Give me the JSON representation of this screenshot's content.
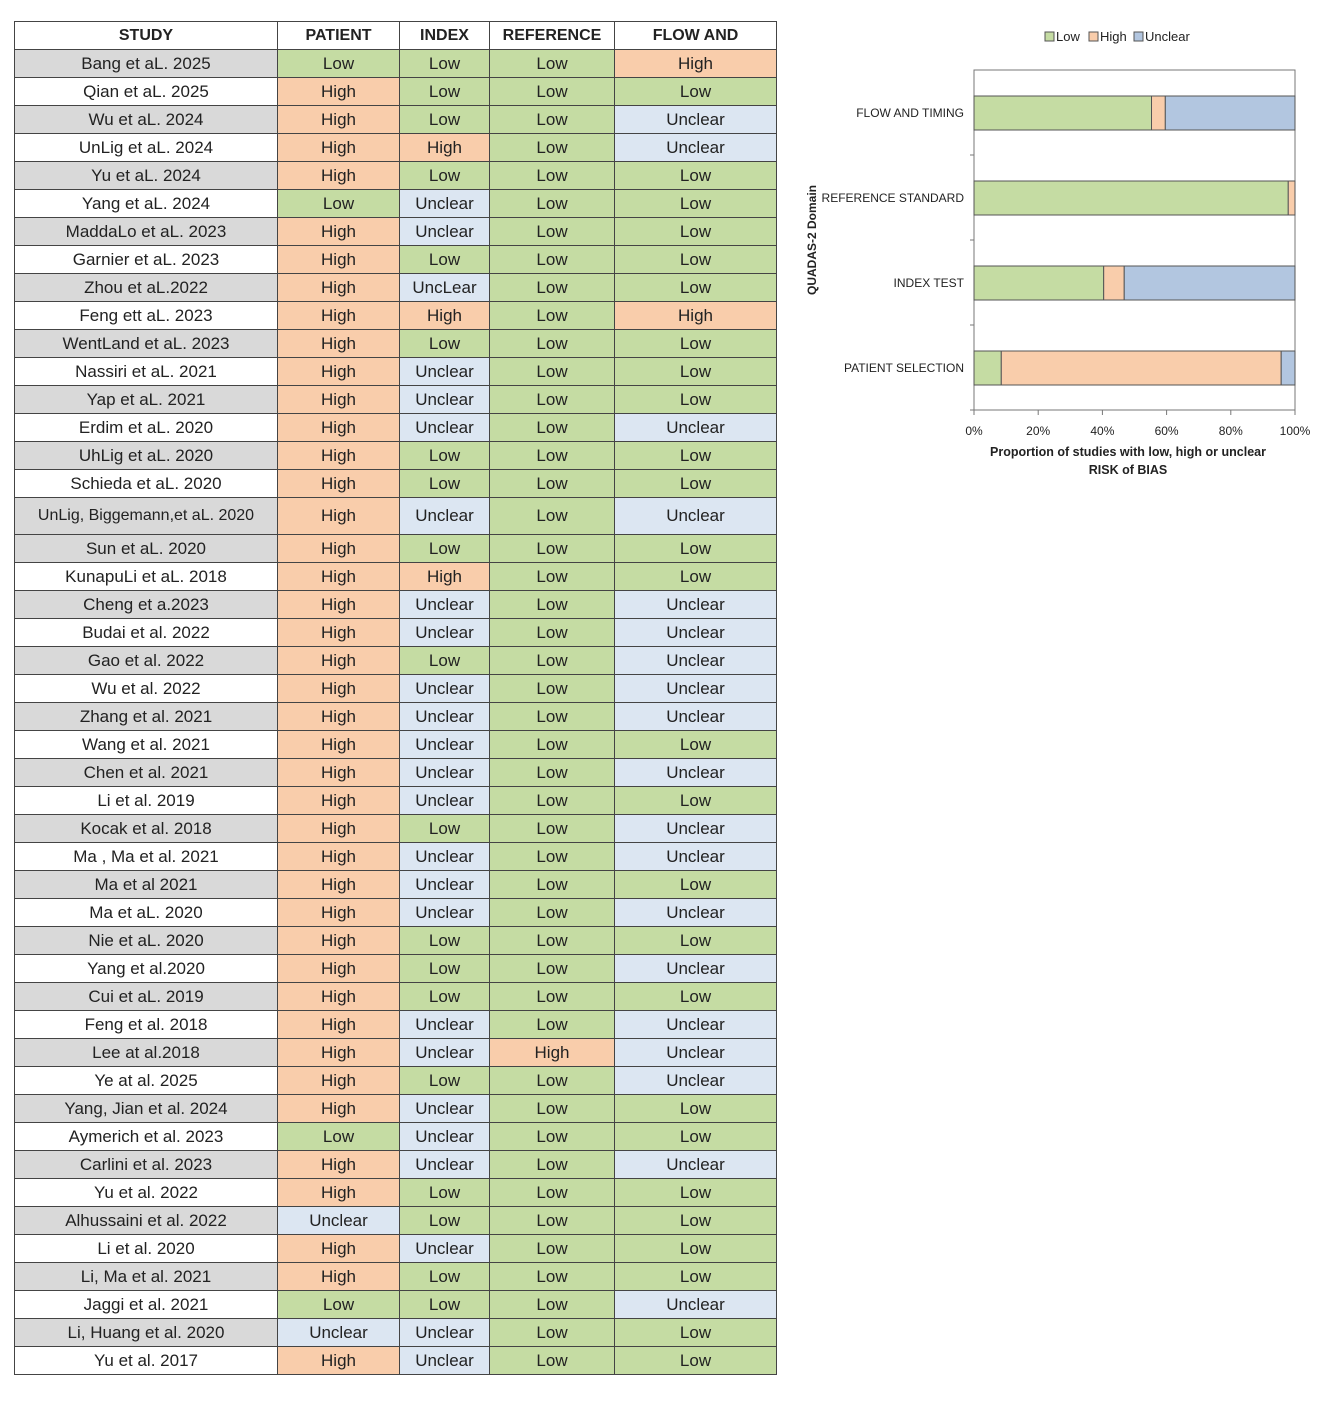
{
  "table": {
    "headers": [
      "STUDY",
      "PATIENT",
      "INDEX",
      "REFERENCE",
      "FLOW AND"
    ],
    "rows": [
      [
        "Bang et aL. 2025",
        "Low",
        "Low",
        "Low",
        "High"
      ],
      [
        "Qian et aL. 2025",
        "High",
        "Low",
        "Low",
        "Low"
      ],
      [
        "Wu et aL. 2024",
        "High",
        "Low",
        "Low",
        "Unclear"
      ],
      [
        "UnLig et aL. 2024",
        "High",
        "High",
        "Low",
        "Unclear"
      ],
      [
        "Yu et aL. 2024",
        "High",
        "Low",
        "Low",
        "Low"
      ],
      [
        "Yang et aL. 2024",
        "Low",
        "Unclear",
        "Low",
        "Low"
      ],
      [
        "MaddaLo et aL. 2023",
        "High",
        "Unclear",
        "Low",
        "Low"
      ],
      [
        "Garnier et aL. 2023",
        "High",
        "Low",
        "Low",
        "Low"
      ],
      [
        "Zhou et aL.2022",
        "High",
        "UncLear",
        "Low",
        "Low"
      ],
      [
        "Feng ett aL. 2023",
        "High",
        "High",
        "Low",
        "High"
      ],
      [
        "WentLand et aL. 2023",
        "High",
        "Low",
        "Low",
        "Low"
      ],
      [
        "Nassiri et aL. 2021",
        "High",
        "Unclear",
        "Low",
        "Low"
      ],
      [
        "Yap et aL. 2021",
        "High",
        "Unclear",
        "Low",
        "Low"
      ],
      [
        "Erdim et aL. 2020",
        "High",
        "Unclear",
        "Low",
        "Unclear"
      ],
      [
        "UhLig et aL. 2020",
        "High",
        "Low",
        "Low",
        "Low"
      ],
      [
        "Schieda et aL. 2020",
        "High",
        "Low",
        "Low",
        "Low"
      ],
      [
        "UnLig, Biggemann,et aL. 2020",
        "High",
        "Unclear",
        "Low",
        "Unclear"
      ],
      [
        "Sun et aL. 2020",
        "High",
        "Low",
        "Low",
        "Low"
      ],
      [
        "KunapuLi et aL. 2018",
        "High",
        "High",
        "Low",
        "Low"
      ],
      [
        "Cheng et a.2023",
        "High",
        "Unclear",
        "Low",
        "Unclear"
      ],
      [
        "Budai et al. 2022",
        "High",
        "Unclear",
        "Low",
        "Unclear"
      ],
      [
        "Gao et  al. 2022",
        "High",
        "Low",
        "Low",
        "Unclear"
      ],
      [
        "Wu et al. 2022",
        "High",
        "Unclear",
        "Low",
        "Unclear"
      ],
      [
        "Zhang et al. 2021",
        "High",
        "Unclear",
        "Low",
        "Unclear"
      ],
      [
        "Wang et al. 2021",
        "High",
        "Unclear",
        "Low",
        "Low"
      ],
      [
        "Chen et al. 2021",
        "High",
        "Unclear",
        "Low",
        "Unclear"
      ],
      [
        "Li et al.  2019",
        "High",
        "Unclear",
        "Low",
        "Low"
      ],
      [
        "Kocak et al. 2018",
        "High",
        "Low",
        "Low",
        "Unclear"
      ],
      [
        "Ma , Ma et al. 2021",
        "High",
        "Unclear",
        "Low",
        "Unclear"
      ],
      [
        "Ma et al 2021",
        "High",
        "Unclear",
        "Low",
        "Low"
      ],
      [
        "Ma et aL. 2020",
        "High",
        "Unclear",
        "Low",
        "Unclear"
      ],
      [
        "Nie et aL. 2020",
        "High",
        "Low",
        "Low",
        "Low"
      ],
      [
        "Yang et al.2020",
        "High",
        "Low",
        "Low",
        "Unclear"
      ],
      [
        "Cui et aL. 2019",
        "High",
        "Low",
        "Low",
        "Low"
      ],
      [
        "Feng et al. 2018",
        "High",
        "Unclear",
        "Low",
        "Unclear"
      ],
      [
        "Lee at al.2018",
        "High",
        "Unclear",
        "High",
        "Unclear"
      ],
      [
        "Ye at al. 2025",
        "High",
        "Low",
        "Low",
        "Unclear"
      ],
      [
        "Yang, Jian et al. 2024",
        "High",
        "Unclear",
        "Low",
        "Low"
      ],
      [
        "Aymerich et al. 2023",
        "Low",
        "Unclear",
        "Low",
        "Low"
      ],
      [
        "Carlini et al. 2023",
        "High",
        "Unclear",
        "Low",
        "Unclear"
      ],
      [
        "Yu et al. 2022",
        "High",
        "Low",
        "Low",
        "Low"
      ],
      [
        "Alhussaini et al. 2022",
        "Unclear",
        "Low",
        "Low",
        "Low"
      ],
      [
        "Li et al. 2020",
        "High",
        "Unclear",
        "Low",
        "Low"
      ],
      [
        "Li, Ma et al. 2021",
        "High",
        "Low",
        "Low",
        "Low"
      ],
      [
        "Jaggi et al. 2021",
        "Low",
        "Low",
        "Low",
        "Unclear"
      ],
      [
        "Li, Huang et al. 2020",
        "Unclear",
        "Unclear",
        "Low",
        "Low"
      ],
      [
        "Yu et al. 2017",
        "High",
        "Unclear",
        "Low",
        "Low"
      ]
    ]
  },
  "colors": {
    "low": "#c5dca3",
    "high": "#f9cdab",
    "unclear": "#dce6f2",
    "unclear_bar": "#b2c6e0",
    "study_shade": "#d9d9d9"
  },
  "chart_data": {
    "type": "bar",
    "orientation": "horizontal",
    "stacked": true,
    "legend": [
      "Low",
      "High",
      "Unclear"
    ],
    "legend_position": "top",
    "categories": [
      "FLOW AND TIMING",
      "REFERENCE STANDARD",
      "INDEX TEST",
      "PATIENT SELECTION"
    ],
    "series": [
      {
        "name": "Low",
        "values": [
          55.3,
          97.9,
          40.4,
          8.5
        ]
      },
      {
        "name": "High",
        "values": [
          4.3,
          2.1,
          6.4,
          87.2
        ]
      },
      {
        "name": "Unclear",
        "values": [
          40.4,
          0,
          53.2,
          4.3
        ]
      }
    ],
    "ylabel": "QUADAS-2 Domain",
    "xlabel_line1": "Proportion of studies with low, high or unclear",
    "xlabel_line2": "RISK of BIAS",
    "xticks": [
      "0%",
      "20%",
      "40%",
      "60%",
      "80%",
      "100%"
    ],
    "xlim": [
      0,
      100
    ]
  }
}
